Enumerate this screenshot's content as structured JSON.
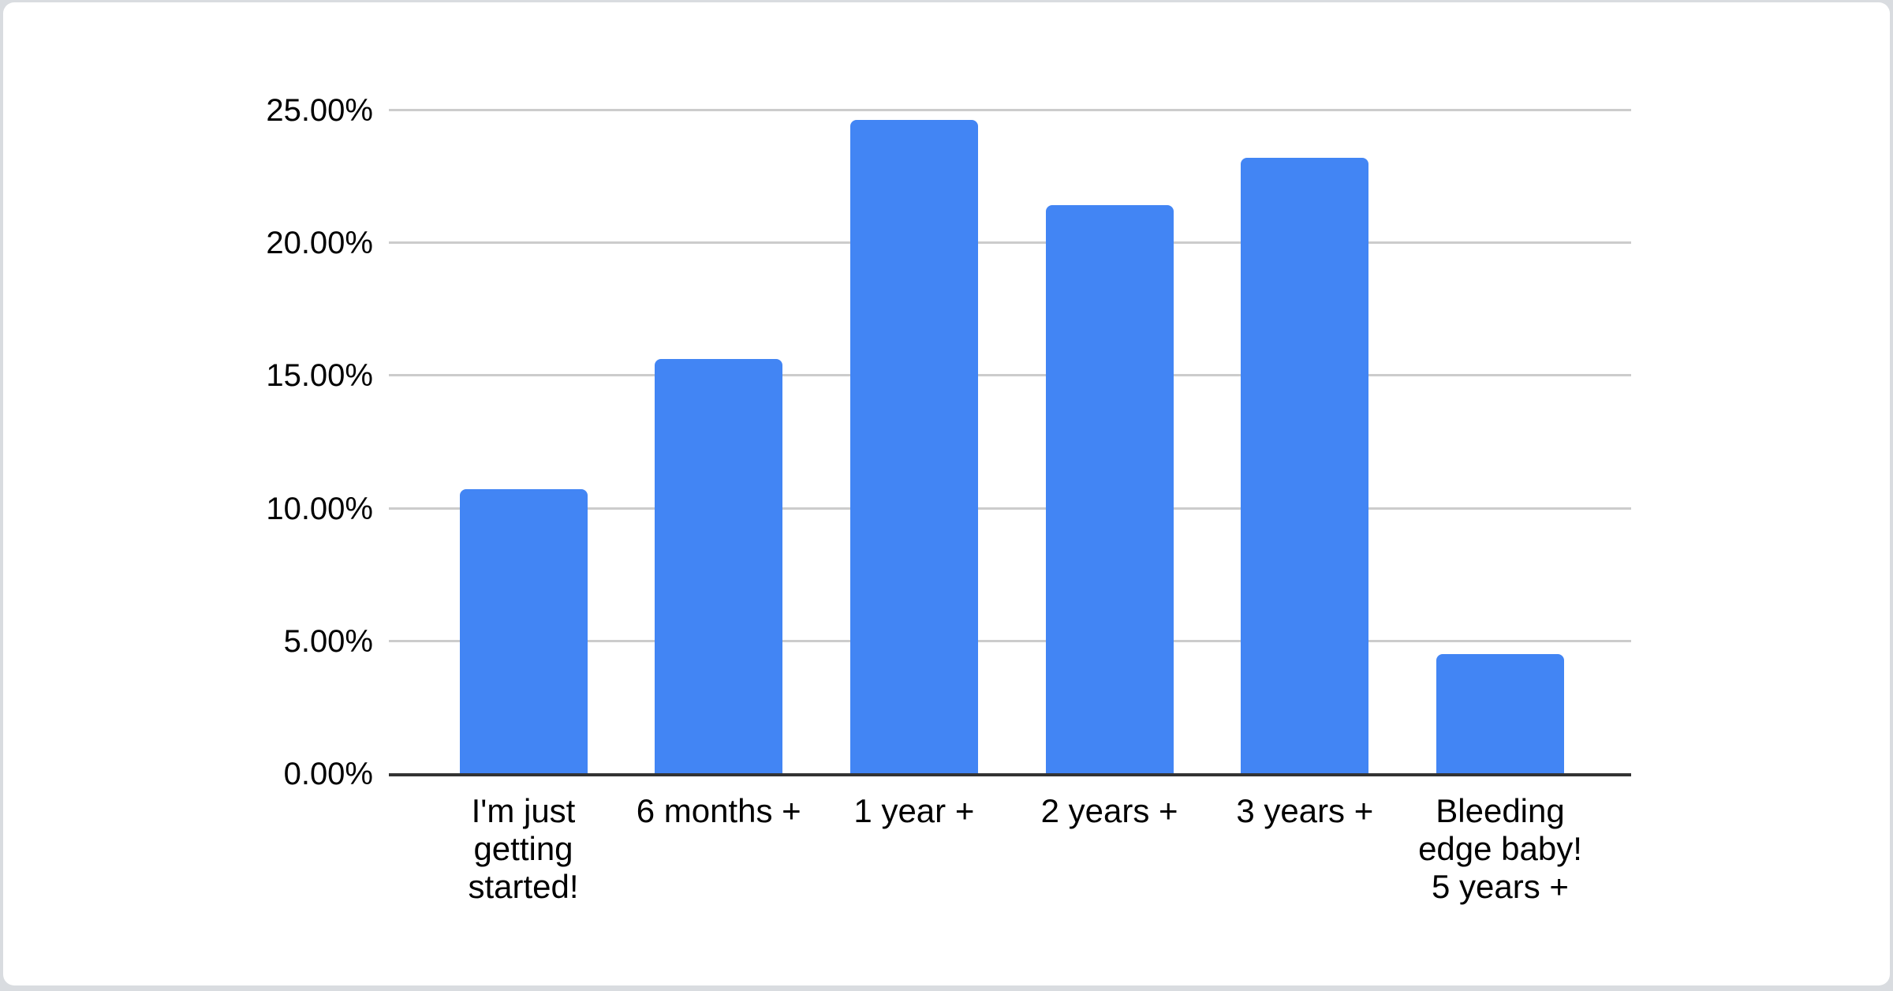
{
  "colors": {
    "bar": "#4285F4",
    "gridline": "#cccccc",
    "axis_line": "#333333",
    "label_text": "#000000",
    "page_background": "#d9dce0",
    "card_background": "#ffffff"
  },
  "chart_data": {
    "type": "bar",
    "title": "",
    "categories": [
      "I'm just getting started!",
      "6 months +",
      "1 year +",
      "2 years +",
      "3 years +",
      "Bleeding edge baby! 5 years +"
    ],
    "categories_wrapped": [
      "I'm just\ngetting\nstarted!",
      "6 months +",
      "1 year +",
      "2 years +",
      "3 years +",
      "Bleeding\nedge baby!\n5 years +"
    ],
    "values": [
      10.7,
      15.6,
      24.6,
      21.4,
      23.2,
      4.5
    ],
    "value_unit": "%",
    "y_ticks": [
      {
        "value": 0,
        "label": "0.00%"
      },
      {
        "value": 5,
        "label": "5.00%"
      },
      {
        "value": 10,
        "label": "10.00%"
      },
      {
        "value": 15,
        "label": "15.00%"
      },
      {
        "value": 20,
        "label": "20.00%"
      },
      {
        "value": 25,
        "label": "25.00%"
      }
    ],
    "ylim": [
      0,
      25
    ],
    "xlabel": "",
    "ylabel": "",
    "grid": "horizontal",
    "legend": "none"
  }
}
